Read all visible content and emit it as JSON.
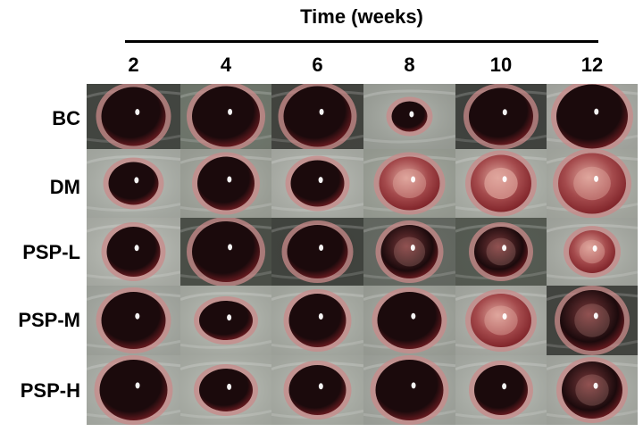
{
  "title": "Time (weeks)",
  "columns": [
    "2",
    "4",
    "6",
    "8",
    "10",
    "12"
  ],
  "rows": [
    "BC",
    "DM",
    "PSP-L",
    "PSP-M",
    "PSP-H"
  ],
  "opacity_grade": [
    [
      0,
      0,
      0,
      0,
      0,
      0
    ],
    [
      0,
      0,
      0,
      2,
      3,
      2
    ],
    [
      0,
      0,
      0,
      1,
      1,
      2
    ],
    [
      0,
      0,
      0,
      0,
      2,
      1
    ],
    [
      0,
      0,
      0,
      0,
      0,
      1
    ]
  ],
  "colors": {
    "background": "#ffffff",
    "fur_light": "#cfd3cc",
    "fur_dark": "#4a4d47",
    "eye_dark": "#1b0a0c",
    "iris_rim": "#7a1e24",
    "eyelid": "#c98a8a",
    "cataract": "#e0a79e"
  }
}
